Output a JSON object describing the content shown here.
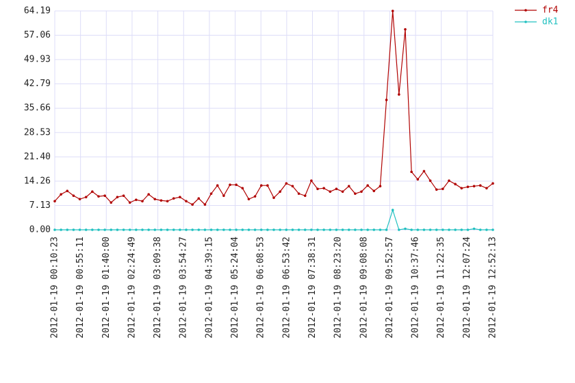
{
  "chart_data": {
    "type": "line",
    "x": [
      "2012-01-19 00:10:23",
      "2012-01-19 00:21:16",
      "2012-01-19 00:32:09",
      "2012-01-19 00:43:02",
      "2012-01-19 00:53:55",
      "2012-01-19 01:04:48",
      "2012-01-19 01:15:41",
      "2012-01-19 01:26:34",
      "2012-01-19 01:37:27",
      "2012-01-19 01:48:20",
      "2012-01-19 01:59:13",
      "2012-01-19 02:10:06",
      "2012-01-19 02:20:59",
      "2012-01-19 02:31:52",
      "2012-01-19 02:42:45",
      "2012-01-19 02:53:38",
      "2012-01-19 03:04:31",
      "2012-01-19 03:15:24",
      "2012-01-19 03:26:17",
      "2012-01-19 03:37:10",
      "2012-01-19 03:48:03",
      "2012-01-19 03:58:56",
      "2012-01-19 04:09:49",
      "2012-01-19 04:20:42",
      "2012-01-19 04:31:35",
      "2012-01-19 04:42:28",
      "2012-01-19 04:53:21",
      "2012-01-19 05:04:14",
      "2012-01-19 05:15:07",
      "2012-01-19 05:26:00",
      "2012-01-19 05:36:53",
      "2012-01-19 05:47:46",
      "2012-01-19 05:58:39",
      "2012-01-19 06:09:32",
      "2012-01-19 06:20:25",
      "2012-01-19 06:31:18",
      "2012-01-19 06:42:11",
      "2012-01-19 06:53:04",
      "2012-01-19 07:03:57",
      "2012-01-19 07:14:50",
      "2012-01-19 07:25:43",
      "2012-01-19 07:36:36",
      "2012-01-19 07:47:29",
      "2012-01-19 07:58:22",
      "2012-01-19 08:09:15",
      "2012-01-19 08:20:08",
      "2012-01-19 08:31:01",
      "2012-01-19 08:41:54",
      "2012-01-19 08:52:47",
      "2012-01-19 09:03:40",
      "2012-01-19 09:14:33",
      "2012-01-19 09:25:26",
      "2012-01-19 09:36:19",
      "2012-01-19 09:47:12",
      "2012-01-19 09:58:05",
      "2012-01-19 10:08:58",
      "2012-01-19 10:19:51",
      "2012-01-19 10:30:44",
      "2012-01-19 10:41:37",
      "2012-01-19 10:52:30",
      "2012-01-19 11:03:23",
      "2012-01-19 11:14:16",
      "2012-01-19 11:25:09",
      "2012-01-19 11:36:02",
      "2012-01-19 11:46:55",
      "2012-01-19 11:57:48",
      "2012-01-19 12:08:41",
      "2012-01-19 12:19:34",
      "2012-01-19 12:30:27",
      "2012-01-19 12:41:20",
      "2012-01-19 12:52:13"
    ],
    "series": [
      {
        "name": "fr4",
        "color": "#b00000",
        "values": [
          8.4,
          10.4,
          11.4,
          10.0,
          9.0,
          9.6,
          11.2,
          9.8,
          10.0,
          8.0,
          9.6,
          10.0,
          8.0,
          8.8,
          8.4,
          10.4,
          9.0,
          8.6,
          8.4,
          9.2,
          9.6,
          8.4,
          7.4,
          9.2,
          7.4,
          10.6,
          13.0,
          10.0,
          13.2,
          13.2,
          12.2,
          9.0,
          9.8,
          13.0,
          13.0,
          9.4,
          11.2,
          13.6,
          12.8,
          10.6,
          10.0,
          14.4,
          12.0,
          12.2,
          11.2,
          12.0,
          11.2,
          12.8,
          10.6,
          11.2,
          13.0,
          11.4,
          12.8,
          38.1,
          64.19,
          39.7,
          58.8,
          17.0,
          14.8,
          17.2,
          14.4,
          11.8,
          12.0,
          14.4,
          13.4,
          12.2,
          12.6,
          12.8,
          13.0,
          12.2,
          13.6
        ]
      },
      {
        "name": "dk1",
        "color": "#20c0c0",
        "values": [
          0,
          0,
          0,
          0,
          0,
          0,
          0,
          0,
          0,
          0,
          0,
          0,
          0,
          0,
          0,
          0,
          0,
          0,
          0,
          0,
          0,
          0,
          0,
          0,
          0,
          0,
          0,
          0,
          0,
          0,
          0,
          0,
          0,
          0,
          0,
          0,
          0,
          0,
          0,
          0,
          0,
          0,
          0,
          0,
          0,
          0,
          0,
          0,
          0,
          0,
          0,
          0,
          0,
          0,
          5.8,
          0,
          0.3,
          0,
          0,
          0,
          0,
          0,
          0,
          0,
          0,
          0,
          0,
          0.3,
          0,
          0,
          0
        ]
      }
    ],
    "xlim": [
      "2012-01-19 00:10:23",
      "2012-01-19 12:52:13"
    ],
    "xticks": [
      "2012-01-19 00:10:23",
      "2012-01-19 00:55:11",
      "2012-01-19 01:40:00",
      "2012-01-19 02:24:49",
      "2012-01-19 03:09:38",
      "2012-01-19 03:54:27",
      "2012-01-19 04:39:15",
      "2012-01-19 05:24:04",
      "2012-01-19 06:08:53",
      "2012-01-19 06:53:42",
      "2012-01-19 07:38:31",
      "2012-01-19 08:23:20",
      "2012-01-19 09:08:08",
      "2012-01-19 09:52:57",
      "2012-01-19 10:37:46",
      "2012-01-19 11:22:35",
      "2012-01-19 12:07:24",
      "2012-01-19 12:52:13"
    ],
    "ylim": [
      0,
      64.19
    ],
    "yticks": [
      {
        "value": 0,
        "label": "0.00"
      },
      7.13,
      14.26,
      {
        "value": 21.4,
        "label": "21.40"
      },
      28.53,
      35.66,
      42.79,
      49.93,
      57.06,
      64.19
    ],
    "grid": true,
    "legend": "top-right"
  }
}
